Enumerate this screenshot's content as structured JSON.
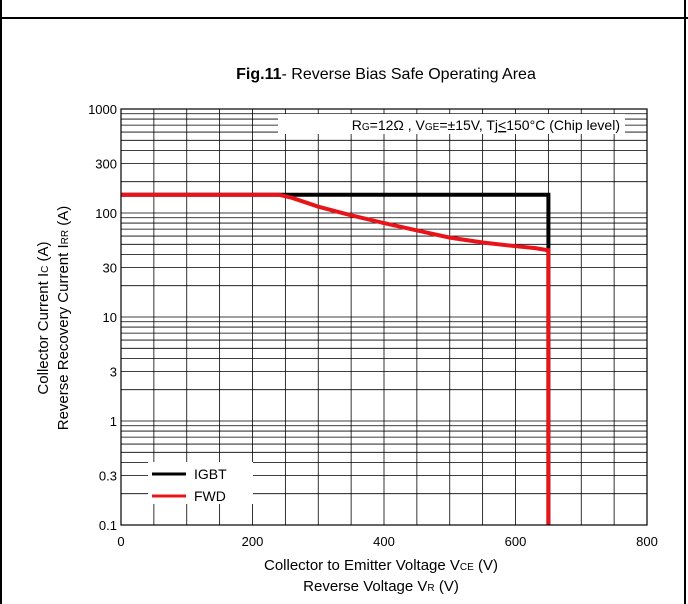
{
  "chart_data": {
    "type": "line",
    "title_bold": "Fig.11",
    "title_rest": "- Reverse Bias Safe Operating Area",
    "annotation": {
      "p1": "R",
      "s1": "G",
      "p2": "=12Ω , V",
      "s2": "GE",
      "p3": "=±15V, Tj",
      "p4": "<",
      "p5": "150°C (Chip level)"
    },
    "ylabel_line1": {
      "main": "Collector Current  I",
      "sub": "C",
      "tail": " (A)"
    },
    "ylabel_line2": {
      "main": "Reverse Recovery Current I",
      "sub": "RR",
      "tail": " (A)"
    },
    "xlabel_line1": {
      "main": "Collector to Emitter Voltage  V",
      "sub": "CE",
      "tail": "  (V)"
    },
    "xlabel_line2": {
      "main": "Reverse Voltage  V",
      "sub": "R",
      "tail": "  (V)"
    },
    "xlim": [
      0,
      800
    ],
    "ylim": [
      0.1,
      1000
    ],
    "yscale": "log",
    "xticks": [
      "0",
      "200",
      "400",
      "600",
      "800"
    ],
    "yticks": [
      "0.1",
      "0.3",
      "1",
      "3",
      "10",
      "30",
      "100",
      "300",
      "1000"
    ],
    "legend_position": "bottom-left",
    "grid": true,
    "series": [
      {
        "name": "IGBT",
        "color": "#000000",
        "x": [
          0,
          250,
          650,
          650
        ],
        "y": [
          150,
          150,
          150,
          0.1
        ]
      },
      {
        "name": "FWD",
        "color": "#e8141a",
        "x": [
          0,
          240,
          260,
          300,
          350,
          400,
          450,
          500,
          550,
          600,
          630,
          648,
          650,
          650
        ],
        "y": [
          150,
          150,
          140,
          115,
          95,
          80,
          68,
          58,
          52,
          48,
          46,
          44,
          44,
          0.1
        ]
      }
    ]
  }
}
